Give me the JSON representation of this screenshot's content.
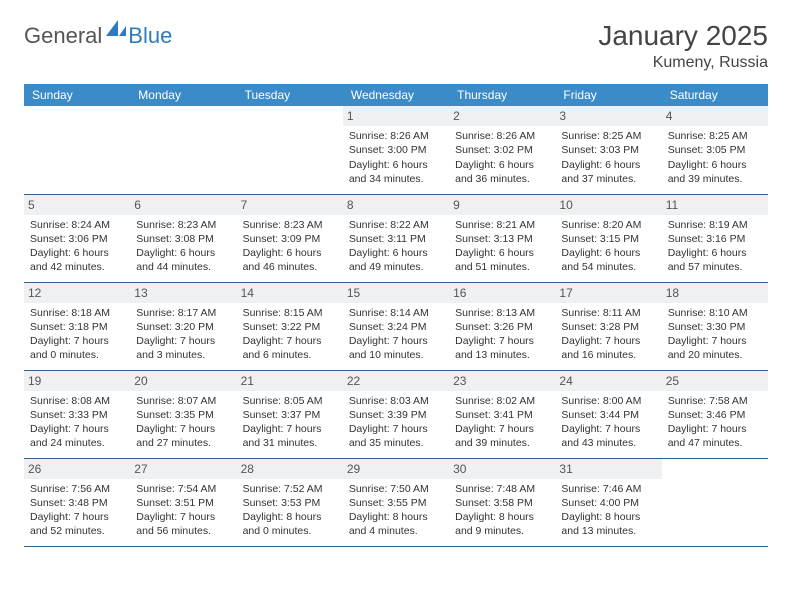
{
  "brand": {
    "part1": "General",
    "part2": "Blue"
  },
  "title": "January 2025",
  "location": "Kumeny, Russia",
  "colors": {
    "header_bg": "#3b8bc9",
    "header_text": "#ffffff",
    "daynum_bg": "#eef0f2",
    "row_border": "#2f5e8c",
    "brand_blue": "#2f7bbf",
    "text": "#333333"
  },
  "weekdays": [
    "Sunday",
    "Monday",
    "Tuesday",
    "Wednesday",
    "Thursday",
    "Friday",
    "Saturday"
  ],
  "weeks": [
    [
      null,
      null,
      null,
      {
        "n": "1",
        "sr": "Sunrise: 8:26 AM",
        "ss": "Sunset: 3:00 PM",
        "d1": "Daylight: 6 hours",
        "d2": "and 34 minutes."
      },
      {
        "n": "2",
        "sr": "Sunrise: 8:26 AM",
        "ss": "Sunset: 3:02 PM",
        "d1": "Daylight: 6 hours",
        "d2": "and 36 minutes."
      },
      {
        "n": "3",
        "sr": "Sunrise: 8:25 AM",
        "ss": "Sunset: 3:03 PM",
        "d1": "Daylight: 6 hours",
        "d2": "and 37 minutes."
      },
      {
        "n": "4",
        "sr": "Sunrise: 8:25 AM",
        "ss": "Sunset: 3:05 PM",
        "d1": "Daylight: 6 hours",
        "d2": "and 39 minutes."
      }
    ],
    [
      {
        "n": "5",
        "sr": "Sunrise: 8:24 AM",
        "ss": "Sunset: 3:06 PM",
        "d1": "Daylight: 6 hours",
        "d2": "and 42 minutes."
      },
      {
        "n": "6",
        "sr": "Sunrise: 8:23 AM",
        "ss": "Sunset: 3:08 PM",
        "d1": "Daylight: 6 hours",
        "d2": "and 44 minutes."
      },
      {
        "n": "7",
        "sr": "Sunrise: 8:23 AM",
        "ss": "Sunset: 3:09 PM",
        "d1": "Daylight: 6 hours",
        "d2": "and 46 minutes."
      },
      {
        "n": "8",
        "sr": "Sunrise: 8:22 AM",
        "ss": "Sunset: 3:11 PM",
        "d1": "Daylight: 6 hours",
        "d2": "and 49 minutes."
      },
      {
        "n": "9",
        "sr": "Sunrise: 8:21 AM",
        "ss": "Sunset: 3:13 PM",
        "d1": "Daylight: 6 hours",
        "d2": "and 51 minutes."
      },
      {
        "n": "10",
        "sr": "Sunrise: 8:20 AM",
        "ss": "Sunset: 3:15 PM",
        "d1": "Daylight: 6 hours",
        "d2": "and 54 minutes."
      },
      {
        "n": "11",
        "sr": "Sunrise: 8:19 AM",
        "ss": "Sunset: 3:16 PM",
        "d1": "Daylight: 6 hours",
        "d2": "and 57 minutes."
      }
    ],
    [
      {
        "n": "12",
        "sr": "Sunrise: 8:18 AM",
        "ss": "Sunset: 3:18 PM",
        "d1": "Daylight: 7 hours",
        "d2": "and 0 minutes."
      },
      {
        "n": "13",
        "sr": "Sunrise: 8:17 AM",
        "ss": "Sunset: 3:20 PM",
        "d1": "Daylight: 7 hours",
        "d2": "and 3 minutes."
      },
      {
        "n": "14",
        "sr": "Sunrise: 8:15 AM",
        "ss": "Sunset: 3:22 PM",
        "d1": "Daylight: 7 hours",
        "d2": "and 6 minutes."
      },
      {
        "n": "15",
        "sr": "Sunrise: 8:14 AM",
        "ss": "Sunset: 3:24 PM",
        "d1": "Daylight: 7 hours",
        "d2": "and 10 minutes."
      },
      {
        "n": "16",
        "sr": "Sunrise: 8:13 AM",
        "ss": "Sunset: 3:26 PM",
        "d1": "Daylight: 7 hours",
        "d2": "and 13 minutes."
      },
      {
        "n": "17",
        "sr": "Sunrise: 8:11 AM",
        "ss": "Sunset: 3:28 PM",
        "d1": "Daylight: 7 hours",
        "d2": "and 16 minutes."
      },
      {
        "n": "18",
        "sr": "Sunrise: 8:10 AM",
        "ss": "Sunset: 3:30 PM",
        "d1": "Daylight: 7 hours",
        "d2": "and 20 minutes."
      }
    ],
    [
      {
        "n": "19",
        "sr": "Sunrise: 8:08 AM",
        "ss": "Sunset: 3:33 PM",
        "d1": "Daylight: 7 hours",
        "d2": "and 24 minutes."
      },
      {
        "n": "20",
        "sr": "Sunrise: 8:07 AM",
        "ss": "Sunset: 3:35 PM",
        "d1": "Daylight: 7 hours",
        "d2": "and 27 minutes."
      },
      {
        "n": "21",
        "sr": "Sunrise: 8:05 AM",
        "ss": "Sunset: 3:37 PM",
        "d1": "Daylight: 7 hours",
        "d2": "and 31 minutes."
      },
      {
        "n": "22",
        "sr": "Sunrise: 8:03 AM",
        "ss": "Sunset: 3:39 PM",
        "d1": "Daylight: 7 hours",
        "d2": "and 35 minutes."
      },
      {
        "n": "23",
        "sr": "Sunrise: 8:02 AM",
        "ss": "Sunset: 3:41 PM",
        "d1": "Daylight: 7 hours",
        "d2": "and 39 minutes."
      },
      {
        "n": "24",
        "sr": "Sunrise: 8:00 AM",
        "ss": "Sunset: 3:44 PM",
        "d1": "Daylight: 7 hours",
        "d2": "and 43 minutes."
      },
      {
        "n": "25",
        "sr": "Sunrise: 7:58 AM",
        "ss": "Sunset: 3:46 PM",
        "d1": "Daylight: 7 hours",
        "d2": "and 47 minutes."
      }
    ],
    [
      {
        "n": "26",
        "sr": "Sunrise: 7:56 AM",
        "ss": "Sunset: 3:48 PM",
        "d1": "Daylight: 7 hours",
        "d2": "and 52 minutes."
      },
      {
        "n": "27",
        "sr": "Sunrise: 7:54 AM",
        "ss": "Sunset: 3:51 PM",
        "d1": "Daylight: 7 hours",
        "d2": "and 56 minutes."
      },
      {
        "n": "28",
        "sr": "Sunrise: 7:52 AM",
        "ss": "Sunset: 3:53 PM",
        "d1": "Daylight: 8 hours",
        "d2": "and 0 minutes."
      },
      {
        "n": "29",
        "sr": "Sunrise: 7:50 AM",
        "ss": "Sunset: 3:55 PM",
        "d1": "Daylight: 8 hours",
        "d2": "and 4 minutes."
      },
      {
        "n": "30",
        "sr": "Sunrise: 7:48 AM",
        "ss": "Sunset: 3:58 PM",
        "d1": "Daylight: 8 hours",
        "d2": "and 9 minutes."
      },
      {
        "n": "31",
        "sr": "Sunrise: 7:46 AM",
        "ss": "Sunset: 4:00 PM",
        "d1": "Daylight: 8 hours",
        "d2": "and 13 minutes."
      },
      null
    ]
  ]
}
